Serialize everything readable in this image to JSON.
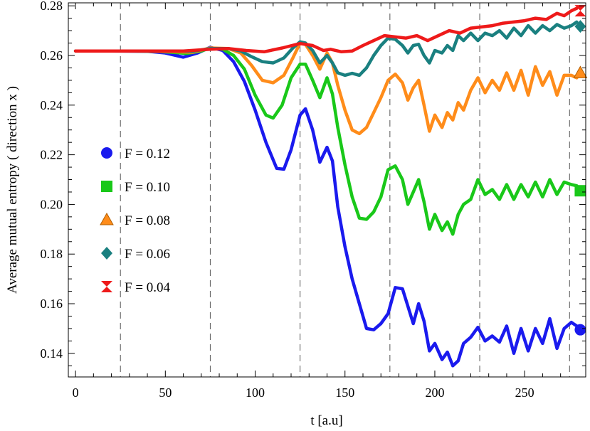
{
  "chart_data": {
    "type": "line",
    "title": "",
    "xlabel": "t  [a.u]",
    "ylabel": "Average  mutual  entropy   ( direction  x )",
    "xlim": [
      -4,
      284
    ],
    "ylim": [
      0.1305,
      0.2812
    ],
    "x_ticks": [
      0,
      50,
      100,
      150,
      200,
      250
    ],
    "y_ticks": [
      0.14,
      0.16,
      0.18,
      0.2,
      0.22,
      0.24,
      0.26,
      0.28
    ],
    "y_tick_labels": [
      "0.14",
      "0.16",
      "0.18",
      "0.20",
      "0.22",
      "0.24",
      "0.26",
      "0.28"
    ],
    "vlines": [
      25,
      75,
      125,
      175,
      225,
      275
    ],
    "grid": false,
    "legend_position": "left",
    "series": [
      {
        "name": "F = 0.12",
        "color": "#1a1aee",
        "marker": "circle",
        "marker_x": 281,
        "marker_y": 0.1495,
        "points": [
          [
            0,
            0.2618
          ],
          [
            20,
            0.2618
          ],
          [
            40,
            0.2617
          ],
          [
            50,
            0.261
          ],
          [
            60,
            0.2593
          ],
          [
            68,
            0.261
          ],
          [
            75,
            0.2633
          ],
          [
            82,
            0.262
          ],
          [
            88,
            0.2575
          ],
          [
            94,
            0.2495
          ],
          [
            100,
            0.238
          ],
          [
            106,
            0.225
          ],
          [
            112,
            0.2145
          ],
          [
            116,
            0.2142
          ],
          [
            120,
            0.222
          ],
          [
            125,
            0.236
          ],
          [
            128,
            0.2385
          ],
          [
            132,
            0.23
          ],
          [
            136,
            0.217
          ],
          [
            140,
            0.223
          ],
          [
            143,
            0.2175
          ],
          [
            146,
            0.199
          ],
          [
            150,
            0.183
          ],
          [
            154,
            0.17
          ],
          [
            158,
            0.16
          ],
          [
            162,
            0.15
          ],
          [
            166,
            0.1495
          ],
          [
            170,
            0.152
          ],
          [
            174,
            0.156
          ],
          [
            178,
            0.1665
          ],
          [
            182,
            0.166
          ],
          [
            185,
            0.159
          ],
          [
            188,
            0.152
          ],
          [
            191,
            0.16
          ],
          [
            194,
            0.153
          ],
          [
            197,
            0.141
          ],
          [
            200,
            0.144
          ],
          [
            204,
            0.1375
          ],
          [
            207,
            0.1405
          ],
          [
            210,
            0.135
          ],
          [
            213,
            0.137
          ],
          [
            216,
            0.144
          ],
          [
            220,
            0.1465
          ],
          [
            224,
            0.1505
          ],
          [
            228,
            0.145
          ],
          [
            232,
            0.147
          ],
          [
            236,
            0.1445
          ],
          [
            240,
            0.151
          ],
          [
            244,
            0.14
          ],
          [
            248,
            0.15
          ],
          [
            252,
            0.141
          ],
          [
            256,
            0.15
          ],
          [
            260,
            0.144
          ],
          [
            264,
            0.154
          ],
          [
            268,
            0.142
          ],
          [
            272,
            0.15
          ],
          [
            276,
            0.1525
          ],
          [
            279,
            0.151
          ]
        ]
      },
      {
        "name": "F = 0.10",
        "color": "#19c819",
        "marker": "square",
        "marker_x": 281,
        "marker_y": 0.2055,
        "points": [
          [
            0,
            0.2618
          ],
          [
            30,
            0.2618
          ],
          [
            45,
            0.2617
          ],
          [
            55,
            0.2612
          ],
          [
            62,
            0.2608
          ],
          [
            70,
            0.2618
          ],
          [
            75,
            0.263
          ],
          [
            82,
            0.2625
          ],
          [
            88,
            0.26
          ],
          [
            94,
            0.2545
          ],
          [
            100,
            0.244
          ],
          [
            106,
            0.236
          ],
          [
            110,
            0.2348
          ],
          [
            115,
            0.24
          ],
          [
            120,
            0.251
          ],
          [
            125,
            0.2565
          ],
          [
            128,
            0.2565
          ],
          [
            132,
            0.25
          ],
          [
            136,
            0.243
          ],
          [
            140,
            0.251
          ],
          [
            143,
            0.2445
          ],
          [
            146,
            0.231
          ],
          [
            150,
            0.216
          ],
          [
            154,
            0.203
          ],
          [
            158,
            0.1945
          ],
          [
            162,
            0.194
          ],
          [
            166,
            0.197
          ],
          [
            170,
            0.203
          ],
          [
            174,
            0.214
          ],
          [
            178,
            0.2155
          ],
          [
            182,
            0.21
          ],
          [
            185,
            0.2
          ],
          [
            188,
            0.205
          ],
          [
            191,
            0.21
          ],
          [
            194,
            0.201
          ],
          [
            197,
            0.19
          ],
          [
            200,
            0.196
          ],
          [
            204,
            0.1895
          ],
          [
            207,
            0.193
          ],
          [
            210,
            0.188
          ],
          [
            213,
            0.196
          ],
          [
            216,
            0.2
          ],
          [
            220,
            0.202
          ],
          [
            224,
            0.21
          ],
          [
            228,
            0.204
          ],
          [
            232,
            0.206
          ],
          [
            236,
            0.202
          ],
          [
            240,
            0.208
          ],
          [
            244,
            0.202
          ],
          [
            248,
            0.208
          ],
          [
            252,
            0.203
          ],
          [
            256,
            0.209
          ],
          [
            260,
            0.203
          ],
          [
            264,
            0.21
          ],
          [
            268,
            0.204
          ],
          [
            272,
            0.209
          ],
          [
            276,
            0.208
          ],
          [
            279,
            0.2075
          ]
        ]
      },
      {
        "name": "F = 0.08",
        "color": "#ff8c1a",
        "marker": "triangle",
        "marker_x": 281,
        "marker_y": 0.253,
        "points": [
          [
            0,
            0.2618
          ],
          [
            40,
            0.2618
          ],
          [
            55,
            0.2615
          ],
          [
            65,
            0.2613
          ],
          [
            75,
            0.263
          ],
          [
            85,
            0.2628
          ],
          [
            92,
            0.261
          ],
          [
            98,
            0.256
          ],
          [
            104,
            0.25
          ],
          [
            110,
            0.249
          ],
          [
            116,
            0.252
          ],
          [
            121,
            0.259
          ],
          [
            125,
            0.265
          ],
          [
            128,
            0.2645
          ],
          [
            132,
            0.26
          ],
          [
            136,
            0.2545
          ],
          [
            140,
            0.261
          ],
          [
            143,
            0.257
          ],
          [
            146,
            0.248
          ],
          [
            150,
            0.238
          ],
          [
            154,
            0.23
          ],
          [
            158,
            0.2285
          ],
          [
            162,
            0.231
          ],
          [
            166,
            0.237
          ],
          [
            170,
            0.243
          ],
          [
            174,
            0.25
          ],
          [
            178,
            0.2525
          ],
          [
            182,
            0.249
          ],
          [
            185,
            0.242
          ],
          [
            188,
            0.247
          ],
          [
            191,
            0.25
          ],
          [
            194,
            0.24
          ],
          [
            197,
            0.2295
          ],
          [
            200,
            0.236
          ],
          [
            204,
            0.231
          ],
          [
            207,
            0.237
          ],
          [
            210,
            0.234
          ],
          [
            213,
            0.241
          ],
          [
            216,
            0.238
          ],
          [
            220,
            0.246
          ],
          [
            224,
            0.251
          ],
          [
            228,
            0.245
          ],
          [
            232,
            0.25
          ],
          [
            236,
            0.246
          ],
          [
            240,
            0.253
          ],
          [
            244,
            0.246
          ],
          [
            248,
            0.254
          ],
          [
            252,
            0.244
          ],
          [
            256,
            0.2555
          ],
          [
            260,
            0.248
          ],
          [
            264,
            0.2535
          ],
          [
            268,
            0.244
          ],
          [
            272,
            0.252
          ],
          [
            276,
            0.252
          ],
          [
            279,
            0.251
          ]
        ]
      },
      {
        "name": "F = 0.06",
        "color": "#1a8080",
        "marker": "diamond",
        "marker_x": 281,
        "marker_y": 0.2717,
        "points": [
          [
            0,
            0.2618
          ],
          [
            50,
            0.2618
          ],
          [
            65,
            0.2617
          ],
          [
            75,
            0.2628
          ],
          [
            85,
            0.2628
          ],
          [
            92,
            0.2618
          ],
          [
            98,
            0.2595
          ],
          [
            104,
            0.2575
          ],
          [
            110,
            0.257
          ],
          [
            116,
            0.259
          ],
          [
            121,
            0.263
          ],
          [
            125,
            0.2655
          ],
          [
            128,
            0.265
          ],
          [
            132,
            0.262
          ],
          [
            136,
            0.257
          ],
          [
            140,
            0.26
          ],
          [
            143,
            0.257
          ],
          [
            146,
            0.253
          ],
          [
            150,
            0.252
          ],
          [
            154,
            0.2528
          ],
          [
            158,
            0.252
          ],
          [
            162,
            0.255
          ],
          [
            166,
            0.26
          ],
          [
            170,
            0.264
          ],
          [
            174,
            0.267
          ],
          [
            178,
            0.2665
          ],
          [
            182,
            0.264
          ],
          [
            185,
            0.261
          ],
          [
            188,
            0.264
          ],
          [
            191,
            0.2645
          ],
          [
            194,
            0.26
          ],
          [
            197,
            0.257
          ],
          [
            200,
            0.262
          ],
          [
            204,
            0.261
          ],
          [
            207,
            0.264
          ],
          [
            210,
            0.262
          ],
          [
            213,
            0.268
          ],
          [
            216,
            0.266
          ],
          [
            220,
            0.269
          ],
          [
            224,
            0.266
          ],
          [
            228,
            0.269
          ],
          [
            232,
            0.268
          ],
          [
            236,
            0.27
          ],
          [
            240,
            0.267
          ],
          [
            244,
            0.271
          ],
          [
            248,
            0.268
          ],
          [
            252,
            0.272
          ],
          [
            256,
            0.269
          ],
          [
            260,
            0.272
          ],
          [
            264,
            0.27
          ],
          [
            268,
            0.2725
          ],
          [
            272,
            0.271
          ],
          [
            276,
            0.272
          ],
          [
            279,
            0.2735
          ]
        ]
      },
      {
        "name": "F = 0.04",
        "color": "#ee1a1a",
        "marker": "hourglass",
        "marker_x": 281,
        "marker_y": 0.278,
        "points": [
          [
            0,
            0.2618
          ],
          [
            60,
            0.2618
          ],
          [
            75,
            0.2625
          ],
          [
            85,
            0.2628
          ],
          [
            95,
            0.262
          ],
          [
            105,
            0.2615
          ],
          [
            115,
            0.263
          ],
          [
            125,
            0.2648
          ],
          [
            132,
            0.264
          ],
          [
            138,
            0.262
          ],
          [
            142,
            0.2625
          ],
          [
            148,
            0.2615
          ],
          [
            154,
            0.2618
          ],
          [
            160,
            0.264
          ],
          [
            166,
            0.266
          ],
          [
            172,
            0.268
          ],
          [
            178,
            0.2675
          ],
          [
            184,
            0.267
          ],
          [
            190,
            0.268
          ],
          [
            196,
            0.266
          ],
          [
            202,
            0.268
          ],
          [
            208,
            0.27
          ],
          [
            214,
            0.269
          ],
          [
            220,
            0.271
          ],
          [
            226,
            0.2715
          ],
          [
            232,
            0.272
          ],
          [
            238,
            0.273
          ],
          [
            244,
            0.2735
          ],
          [
            250,
            0.274
          ],
          [
            256,
            0.275
          ],
          [
            262,
            0.2745
          ],
          [
            268,
            0.277
          ],
          [
            272,
            0.276
          ],
          [
            276,
            0.278
          ],
          [
            279,
            0.279
          ]
        ]
      }
    ]
  }
}
